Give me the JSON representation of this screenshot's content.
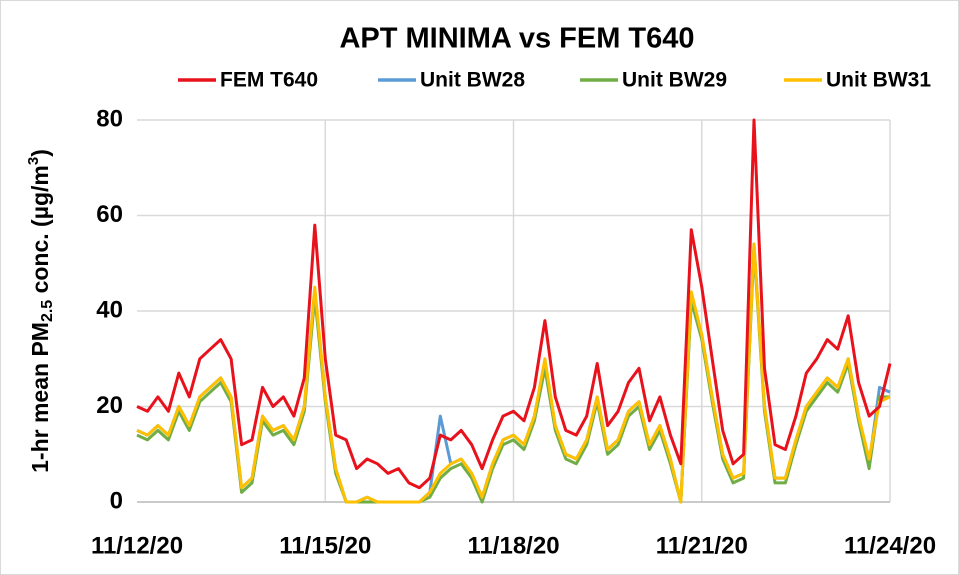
{
  "chart_data": {
    "type": "line",
    "title": "APT MINIMA vs FEM T640",
    "y_label": [
      "1-hr mean PM",
      "2.5",
      " conc. (µg/m",
      "3",
      ")"
    ],
    "categories": [
      "11/12/20",
      null,
      null,
      null,
      null,
      null,
      null,
      null,
      null,
      null,
      null,
      null,
      null,
      null,
      null,
      null,
      null,
      null,
      "11/15/20",
      null,
      null,
      null,
      null,
      null,
      null,
      null,
      null,
      null,
      null,
      null,
      null,
      null,
      null,
      null,
      null,
      null,
      "11/18/20",
      null,
      null,
      null,
      null,
      null,
      null,
      null,
      null,
      null,
      null,
      null,
      null,
      null,
      null,
      null,
      null,
      null,
      "11/21/20",
      null,
      null,
      null,
      null,
      null,
      null,
      null,
      null,
      null,
      null,
      null,
      null,
      null,
      null,
      null,
      null,
      null,
      "11/24/20"
    ],
    "series": [
      {
        "name": "FEM T640",
        "color": "#e8121c",
        "values": [
          20,
          19,
          22,
          19,
          27,
          22,
          30,
          32,
          34,
          30,
          12,
          13,
          24,
          20,
          22,
          18,
          26,
          58,
          30,
          14,
          13,
          7,
          9,
          8,
          6,
          7,
          4,
          3,
          5,
          14,
          13,
          15,
          12,
          7,
          13,
          18,
          19,
          17,
          24,
          38,
          22,
          15,
          14,
          18,
          29,
          16,
          19,
          25,
          28,
          17,
          22,
          14,
          8,
          57,
          45,
          30,
          15,
          8,
          10,
          80,
          28,
          12,
          11,
          18,
          27,
          30,
          34,
          32,
          39,
          25,
          18,
          20,
          29
        ]
      },
      {
        "name": "Unit BW28",
        "color": "#5b9bd5",
        "values": [
          15,
          14,
          16,
          14,
          20,
          16,
          22,
          24,
          26,
          22,
          3,
          5,
          18,
          15,
          16,
          13,
          20,
          44,
          22,
          7,
          0,
          0,
          1,
          0,
          0,
          0,
          0,
          0,
          2,
          18,
          8,
          9,
          6,
          1,
          8,
          13,
          14,
          12,
          18,
          29,
          16,
          10,
          9,
          13,
          22,
          11,
          13,
          19,
          21,
          12,
          16,
          9,
          0,
          43,
          35,
          22,
          10,
          5,
          6,
          54,
          20,
          5,
          5,
          13,
          20,
          23,
          26,
          24,
          30,
          18,
          8,
          24,
          23
        ]
      },
      {
        "name": "Unit BW29",
        "color": "#70ad47",
        "values": [
          14,
          13,
          15,
          13,
          19,
          15,
          21,
          23,
          25,
          21,
          2,
          4,
          17,
          14,
          15,
          12,
          19,
          43,
          21,
          6,
          0,
          0,
          0,
          0,
          0,
          0,
          0,
          0,
          1,
          5,
          7,
          8,
          5,
          0,
          7,
          12,
          13,
          11,
          17,
          28,
          15,
          9,
          8,
          12,
          21,
          10,
          12,
          18,
          20,
          11,
          15,
          8,
          0,
          42,
          34,
          21,
          9,
          4,
          5,
          53,
          19,
          4,
          4,
          12,
          19,
          22,
          25,
          23,
          29,
          17,
          7,
          22,
          22
        ]
      },
      {
        "name": "Unit BW31",
        "color": "#ffc000",
        "values": [
          15,
          14,
          16,
          14,
          20,
          16,
          22,
          24,
          26,
          22,
          3,
          5,
          18,
          15,
          16,
          13,
          20,
          45,
          22,
          7,
          0,
          0,
          1,
          0,
          0,
          0,
          0,
          0,
          2,
          6,
          8,
          9,
          6,
          1,
          8,
          13,
          14,
          12,
          18,
          30,
          16,
          10,
          9,
          13,
          22,
          11,
          13,
          19,
          21,
          12,
          16,
          9,
          0,
          44,
          35,
          22,
          10,
          5,
          6,
          54,
          20,
          5,
          5,
          13,
          20,
          23,
          26,
          24,
          30,
          18,
          9,
          21,
          22
        ]
      }
    ],
    "ylim": [
      0,
      80
    ],
    "yticks": [
      0,
      20,
      40,
      60,
      80
    ],
    "grid": true,
    "legend": "top"
  }
}
